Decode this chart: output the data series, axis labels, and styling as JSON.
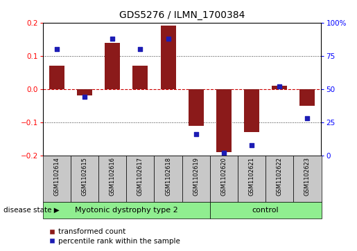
{
  "title": "GDS5276 / ILMN_1700384",
  "samples": [
    "GSM1102614",
    "GSM1102615",
    "GSM1102616",
    "GSM1102617",
    "GSM1102618",
    "GSM1102619",
    "GSM1102620",
    "GSM1102621",
    "GSM1102622",
    "GSM1102623"
  ],
  "transformed_count": [
    0.07,
    -0.02,
    0.14,
    0.07,
    0.19,
    -0.11,
    -0.19,
    -0.13,
    0.01,
    -0.05
  ],
  "percentile_rank": [
    80,
    44,
    88,
    80,
    88,
    16,
    2,
    8,
    52,
    28
  ],
  "group_boundary": 6,
  "group_labels": [
    "Myotonic dystrophy type 2",
    "control"
  ],
  "group_color": "#90EE90",
  "bar_color": "#8B1A1A",
  "dot_color": "#1C1CB4",
  "ylim_left": [
    -0.2,
    0.2
  ],
  "ylim_right": [
    0,
    100
  ],
  "yticks_left": [
    -0.2,
    -0.1,
    0.0,
    0.1,
    0.2
  ],
  "yticks_right": [
    0,
    25,
    50,
    75,
    100
  ],
  "ytick_labels_right": [
    "0",
    "25",
    "50",
    "75",
    "100%"
  ],
  "hlines": [
    0.1,
    -0.1
  ],
  "hline_zero_color": "#CC0000",
  "hline_grid_color": "#333333",
  "label_area_color": "#C8C8C8",
  "disease_state_label": "disease state",
  "legend_bar_label": "transformed count",
  "legend_dot_label": "percentile rank within the sample",
  "figsize": [
    5.15,
    3.63
  ],
  "dpi": 100
}
